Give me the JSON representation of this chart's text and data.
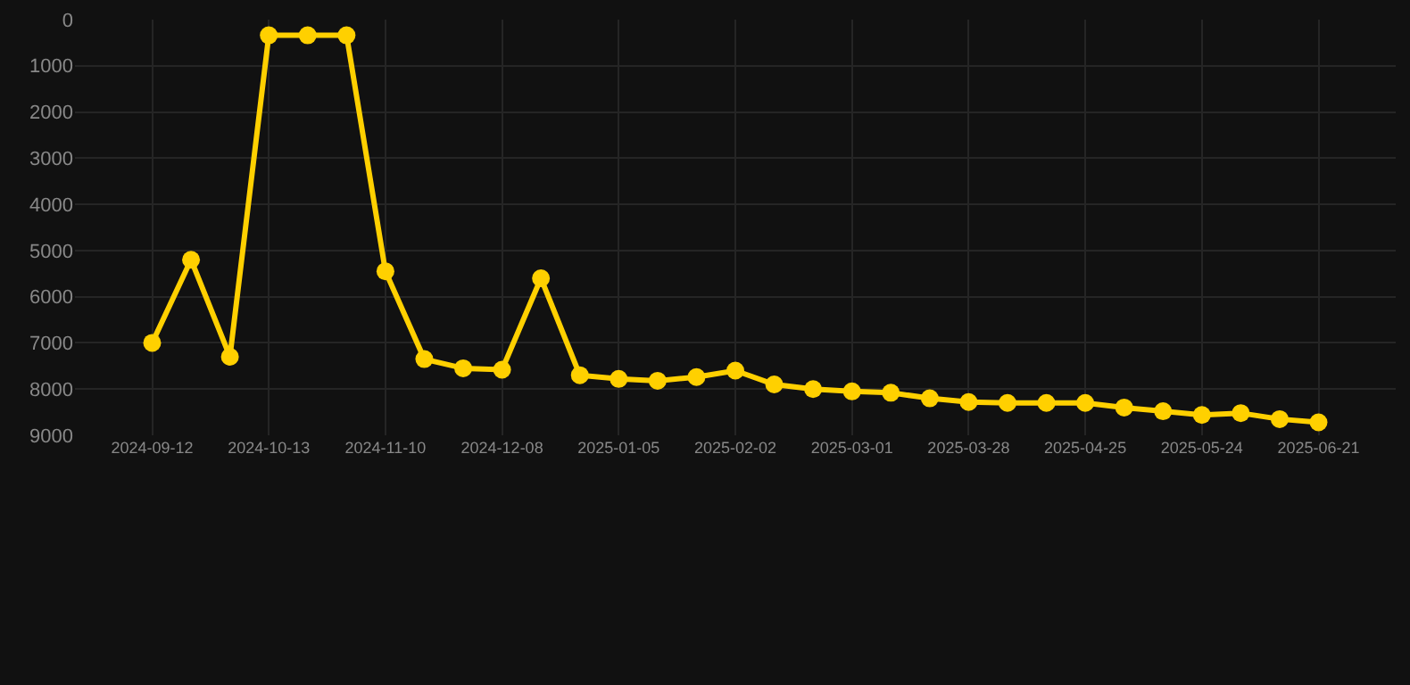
{
  "chart_data": {
    "type": "line",
    "categories": [
      "2024-09-12",
      null,
      null,
      "2024-10-13",
      null,
      null,
      "2024-11-10",
      null,
      null,
      "2024-12-08",
      null,
      null,
      "2025-01-05",
      null,
      null,
      "2025-02-02",
      null,
      null,
      "2025-03-01",
      null,
      null,
      "2025-03-28",
      null,
      null,
      "2025-04-25",
      null,
      null,
      "2025-05-24",
      null,
      null,
      "2025-06-21"
    ],
    "series": [
      {
        "color": "#ffd000",
        "values": [
          7000,
          5200,
          7300,
          340,
          340,
          340,
          5450,
          7350,
          7550,
          7580,
          5600,
          7700,
          7780,
          7820,
          7740,
          7600,
          7900,
          8000,
          8050,
          8080,
          8200,
          8280,
          8300,
          8300,
          8300,
          8400,
          8480,
          8560,
          8520,
          8650,
          8720
        ]
      }
    ],
    "ylim": [
      9000,
      0
    ],
    "yticks": [
      0,
      1000,
      2000,
      3000,
      4000,
      5000,
      6000,
      7000,
      8000,
      9000
    ],
    "grid": true,
    "marker": "circle",
    "line_style": "solid"
  }
}
